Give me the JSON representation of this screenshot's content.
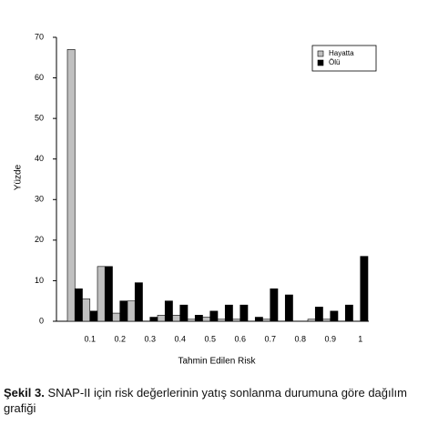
{
  "chart_data": {
    "type": "bar",
    "x_label": "Tahmin Edilen Risk",
    "y_label": "Yüzde",
    "categories": [
      null,
      "0.1",
      null,
      "0.2",
      null,
      "0.3",
      null,
      "0.4",
      null,
      "0.5",
      null,
      "0.6",
      null,
      "0.7",
      null,
      "0.8",
      null,
      "0.9",
      null,
      "1"
    ],
    "series": [
      {
        "name": "Hayatta",
        "color": "#c0c0c0",
        "values": [
          67,
          5.5,
          13.5,
          2,
          5,
          0,
          1.5,
          1.5,
          0.5,
          1,
          0.5,
          0.5,
          0,
          0.5,
          0,
          0,
          0.5,
          0.5,
          0,
          0
        ]
      },
      {
        "name": "Ölü",
        "color": "#000000",
        "values": [
          8,
          2.5,
          13.5,
          5,
          9.5,
          1,
          5,
          4,
          1.5,
          2.5,
          4,
          4,
          1,
          8,
          6.5,
          0,
          3.5,
          2.5,
          4,
          16
        ]
      }
    ],
    "ylim": [
      0,
      70
    ],
    "yticks": [
      0,
      10,
      20,
      30,
      40,
      50,
      60,
      70
    ],
    "legend": "top-right",
    "caption_label": "Şekil 3.",
    "caption": "SNAP-II için risk değerlerinin yatış sonlanma durumuna göre dağılım grafiği"
  }
}
